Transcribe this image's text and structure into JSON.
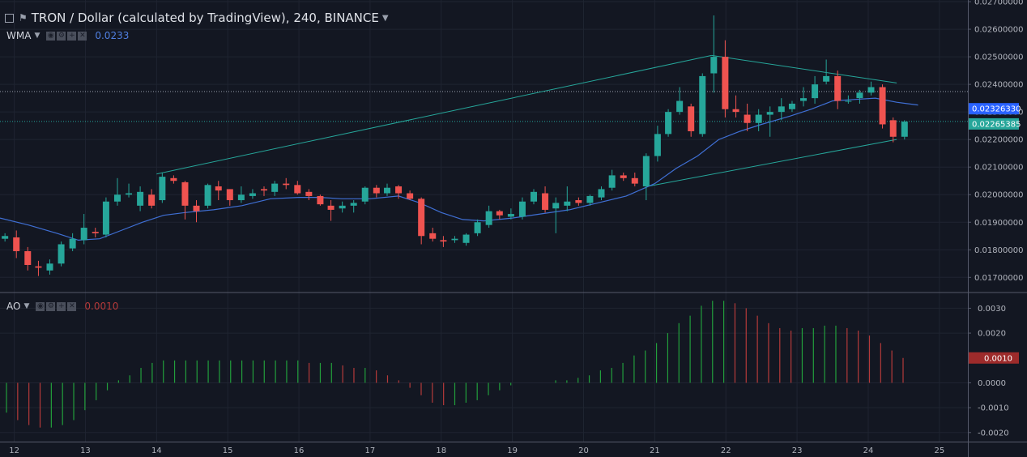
{
  "header": {
    "title": "TRON / Dollar (calculated by TradingView), 240, BINANCE"
  },
  "indicators": {
    "wma": {
      "label": "WMA",
      "value": "0.0233"
    },
    "ao": {
      "label": "AO",
      "value": "0.0010"
    }
  },
  "colors": {
    "background": "#131722",
    "up": "#26a69a",
    "down": "#ef5350",
    "wma_line": "#3f6fd4",
    "trendline": "#26a69a",
    "ao_up": "#229f3c",
    "ao_down": "#b53a3a",
    "label_wma": "#2962ff",
    "label_price": "#26a69a",
    "label_ao": "#9d2b2b"
  },
  "chart_data": [
    {
      "type": "candlestick",
      "title": "TRON / Dollar (calculated by TradingView), 240, BINANCE",
      "x_ticks": [
        "12",
        "13",
        "14",
        "15",
        "16",
        "17",
        "18",
        "19",
        "20",
        "21",
        "22",
        "23",
        "24",
        "25"
      ],
      "y_ticks": [
        "0.02700000",
        "0.02600000",
        "0.02500000",
        "0.02400000",
        "0.02300000",
        "0.02200000",
        "0.02100000",
        "0.02000000",
        "0.01900000",
        "0.01800000",
        "0.01700000"
      ],
      "ylim": [
        0.01648,
        0.02706
      ],
      "xlim": [
        11.8,
        25.4
      ],
      "last_price_label": "0.02265385",
      "wma_label": "0.02326330",
      "dotted_level": 0.02374,
      "candles": [
        [
          11.87,
          0.0184,
          0.0185,
          0.0183,
          0.0186
        ],
        [
          12.03,
          0.01845,
          0.01795,
          0.0177,
          0.0187
        ],
        [
          12.19,
          0.01795,
          0.01745,
          0.01725,
          0.0181
        ],
        [
          12.34,
          0.0174,
          0.01735,
          0.01705,
          0.0176
        ],
        [
          12.5,
          0.01725,
          0.0175,
          0.0171,
          0.01765
        ],
        [
          12.66,
          0.0175,
          0.0182,
          0.0174,
          0.0183
        ],
        [
          12.82,
          0.01805,
          0.0184,
          0.01795,
          0.0186
        ],
        [
          12.98,
          0.01835,
          0.0188,
          0.0182,
          0.0193
        ],
        [
          13.14,
          0.01865,
          0.0186,
          0.01845,
          0.0188
        ],
        [
          13.29,
          0.01855,
          0.01975,
          0.01845,
          0.0199
        ],
        [
          13.45,
          0.01975,
          0.02,
          0.0196,
          0.0206
        ],
        [
          13.61,
          0.02,
          0.02005,
          0.0199,
          0.0204
        ],
        [
          13.77,
          0.0196,
          0.0201,
          0.0194,
          0.0203
        ],
        [
          13.93,
          0.02,
          0.0196,
          0.0195,
          0.0202
        ],
        [
          14.08,
          0.0198,
          0.02065,
          0.0197,
          0.0208
        ],
        [
          14.24,
          0.0206,
          0.0205,
          0.0204,
          0.0207
        ],
        [
          14.4,
          0.02045,
          0.0196,
          0.0191,
          0.0205
        ],
        [
          14.56,
          0.0196,
          0.0194,
          0.019,
          0.0198
        ],
        [
          14.72,
          0.0196,
          0.02035,
          0.0195,
          0.0204
        ],
        [
          14.87,
          0.0203,
          0.02015,
          0.0198,
          0.0205
        ],
        [
          15.03,
          0.0202,
          0.0198,
          0.0196,
          0.0202
        ],
        [
          15.19,
          0.0198,
          0.02,
          0.0197,
          0.0203
        ],
        [
          15.35,
          0.01995,
          0.02005,
          0.01985,
          0.0202
        ],
        [
          15.51,
          0.0202,
          0.02015,
          0.01995,
          0.0203
        ],
        [
          15.66,
          0.0201,
          0.0204,
          0.01995,
          0.0205
        ],
        [
          15.82,
          0.0204,
          0.02035,
          0.0202,
          0.0206
        ],
        [
          15.98,
          0.02035,
          0.02005,
          0.02,
          0.0205
        ],
        [
          16.14,
          0.0201,
          0.01995,
          0.0198,
          0.0202
        ],
        [
          16.3,
          0.01995,
          0.01965,
          0.0196,
          0.02
        ],
        [
          16.45,
          0.0196,
          0.01945,
          0.01905,
          0.0198
        ],
        [
          16.61,
          0.0195,
          0.0196,
          0.01935,
          0.01975
        ],
        [
          16.77,
          0.0196,
          0.0197,
          0.01935,
          0.0198
        ],
        [
          16.93,
          0.01975,
          0.02025,
          0.01965,
          0.0203
        ],
        [
          17.09,
          0.02025,
          0.02005,
          0.0199,
          0.02035
        ],
        [
          17.24,
          0.02005,
          0.02025,
          0.01995,
          0.0204
        ],
        [
          17.4,
          0.0203,
          0.02005,
          0.01985,
          0.02035
        ],
        [
          17.56,
          0.02005,
          0.01985,
          0.0198,
          0.02015
        ],
        [
          17.72,
          0.01985,
          0.0185,
          0.0182,
          0.0199
        ],
        [
          17.88,
          0.0186,
          0.0184,
          0.0183,
          0.0188
        ],
        [
          18.03,
          0.01835,
          0.0183,
          0.0181,
          0.0185
        ],
        [
          18.19,
          0.01835,
          0.0184,
          0.01825,
          0.0185
        ],
        [
          18.35,
          0.01825,
          0.01855,
          0.01815,
          0.0186
        ],
        [
          18.51,
          0.0186,
          0.019,
          0.0185,
          0.0191
        ],
        [
          18.67,
          0.0189,
          0.0194,
          0.0188,
          0.0196
        ],
        [
          18.82,
          0.0194,
          0.01925,
          0.0191,
          0.01945
        ],
        [
          18.98,
          0.0192,
          0.0193,
          0.0191,
          0.0195
        ],
        [
          19.14,
          0.0192,
          0.01975,
          0.0191,
          0.0199
        ],
        [
          19.3,
          0.01975,
          0.0201,
          0.01965,
          0.0202
        ],
        [
          19.46,
          0.02005,
          0.01945,
          0.01935,
          0.0203
        ],
        [
          19.61,
          0.0195,
          0.0197,
          0.0186,
          0.0199
        ],
        [
          19.77,
          0.0196,
          0.01975,
          0.0194,
          0.0203
        ],
        [
          19.93,
          0.0198,
          0.0197,
          0.0196,
          0.0199
        ],
        [
          20.09,
          0.0197,
          0.01995,
          0.0196,
          0.02
        ],
        [
          20.25,
          0.0199,
          0.0202,
          0.0198,
          0.0203
        ],
        [
          20.4,
          0.02025,
          0.0207,
          0.02015,
          0.0209
        ],
        [
          20.56,
          0.0207,
          0.0206,
          0.0205,
          0.0208
        ],
        [
          20.72,
          0.0206,
          0.0204,
          0.0203,
          0.0208
        ],
        [
          20.88,
          0.0203,
          0.0214,
          0.0198,
          0.0215
        ],
        [
          21.04,
          0.0214,
          0.0222,
          0.0212,
          0.0225
        ],
        [
          21.19,
          0.0222,
          0.023,
          0.0221,
          0.0231
        ],
        [
          21.35,
          0.023,
          0.0234,
          0.0229,
          0.0239
        ],
        [
          21.51,
          0.0232,
          0.0223,
          0.0221,
          0.0233
        ],
        [
          21.67,
          0.0222,
          0.0243,
          0.0221,
          0.0244
        ],
        [
          21.83,
          0.0244,
          0.025,
          0.0237,
          0.0265
        ],
        [
          21.99,
          0.025,
          0.0231,
          0.0228,
          0.0256
        ],
        [
          22.14,
          0.0231,
          0.023,
          0.0228,
          0.0236
        ],
        [
          22.3,
          0.0229,
          0.0226,
          0.0223,
          0.0233
        ],
        [
          22.46,
          0.0226,
          0.0229,
          0.0223,
          0.0231
        ],
        [
          22.62,
          0.0229,
          0.023,
          0.0221,
          0.0232
        ],
        [
          22.78,
          0.023,
          0.0232,
          0.0227,
          0.0235
        ],
        [
          22.93,
          0.0231,
          0.0233,
          0.023,
          0.0234
        ],
        [
          23.09,
          0.0234,
          0.0235,
          0.0232,
          0.0239
        ],
        [
          23.25,
          0.0235,
          0.024,
          0.0233,
          0.0243
        ],
        [
          23.41,
          0.0241,
          0.0243,
          0.024,
          0.0249
        ],
        [
          23.57,
          0.0243,
          0.0234,
          0.0231,
          0.0245
        ],
        [
          23.72,
          0.0234,
          0.0234,
          0.0233,
          0.0236
        ],
        [
          23.88,
          0.0235,
          0.0237,
          0.0233,
          0.0238
        ],
        [
          24.04,
          0.0237,
          0.0239,
          0.0236,
          0.0241
        ],
        [
          24.2,
          0.0239,
          0.02255,
          0.0224,
          0.024
        ],
        [
          24.35,
          0.0227,
          0.0221,
          0.0219,
          0.0228
        ],
        [
          24.51,
          0.0221,
          0.02265,
          0.022,
          0.0227
        ]
      ],
      "wma": [
        [
          11.8,
          0.01915
        ],
        [
          12.2,
          0.0189
        ],
        [
          12.6,
          0.0186
        ],
        [
          12.9,
          0.01835
        ],
        [
          13.2,
          0.0184
        ],
        [
          13.5,
          0.0187
        ],
        [
          13.8,
          0.019
        ],
        [
          14.1,
          0.01925
        ],
        [
          14.4,
          0.01935
        ],
        [
          14.8,
          0.01945
        ],
        [
          15.2,
          0.0196
        ],
        [
          15.6,
          0.01985
        ],
        [
          16.0,
          0.0199
        ],
        [
          16.3,
          0.0199
        ],
        [
          16.6,
          0.01985
        ],
        [
          17.0,
          0.01985
        ],
        [
          17.4,
          0.01995
        ],
        [
          17.7,
          0.0197
        ],
        [
          18.0,
          0.01935
        ],
        [
          18.3,
          0.0191
        ],
        [
          18.6,
          0.01905
        ],
        [
          19.0,
          0.01915
        ],
        [
          19.4,
          0.0193
        ],
        [
          19.8,
          0.01945
        ],
        [
          20.2,
          0.0197
        ],
        [
          20.6,
          0.01995
        ],
        [
          21.0,
          0.0204
        ],
        [
          21.3,
          0.02095
        ],
        [
          21.6,
          0.0214
        ],
        [
          21.9,
          0.022
        ],
        [
          22.2,
          0.0223
        ],
        [
          22.5,
          0.02255
        ],
        [
          22.9,
          0.02285
        ],
        [
          23.2,
          0.0231
        ],
        [
          23.5,
          0.0234
        ],
        [
          23.8,
          0.02345
        ],
        [
          24.1,
          0.0235
        ],
        [
          24.4,
          0.02335
        ],
        [
          24.7,
          0.02325
        ]
      ],
      "trendlines": [
        [
          [
            14.0,
            0.02075
          ],
          [
            21.8,
            0.02505
          ]
        ],
        [
          [
            21.8,
            0.02505
          ],
          [
            24.4,
            0.02405
          ]
        ],
        [
          [
            20.9,
            0.0203
          ],
          [
            24.4,
            0.022
          ]
        ]
      ]
    },
    {
      "type": "histogram",
      "title": "AO",
      "y_ticks": [
        "0.0030",
        "0.0020",
        "0.0000",
        "-0.0010",
        "-0.0020"
      ],
      "ylim": [
        -0.0023,
        0.0036
      ],
      "value_label": "0.0010",
      "bars": [
        -0.0012,
        -0.0015,
        -0.0017,
        -0.0018,
        -0.0018,
        -0.0017,
        -0.0015,
        -0.0011,
        -0.0007,
        -0.0003,
        0.0001,
        0.0003,
        0.0006,
        0.0008,
        0.0009,
        0.0009,
        0.0009,
        0.0009,
        0.0009,
        0.0009,
        0.0009,
        0.0009,
        0.0009,
        0.0009,
        0.0009,
        0.0009,
        0.0009,
        0.0008,
        0.0008,
        0.0008,
        0.0007,
        0.0006,
        0.0006,
        0.0005,
        0.0003,
        0.0001,
        -0.0002,
        -0.0005,
        -0.0008,
        -0.0009,
        -0.0009,
        -0.0008,
        -0.0007,
        -0.0005,
        -0.0003,
        -0.0001,
        0.0,
        0.0,
        0.0,
        0.0001,
        0.0001,
        0.0002,
        0.0003,
        0.0005,
        0.0006,
        0.0008,
        0.0011,
        0.0013,
        0.0016,
        0.002,
        0.0024,
        0.0027,
        0.0031,
        0.0033,
        0.0033,
        0.0032,
        0.003,
        0.0027,
        0.0024,
        0.0022,
        0.0021,
        0.0022,
        0.0022,
        0.0023,
        0.0023,
        0.0022,
        0.0021,
        0.0019,
        0.0016,
        0.0013,
        0.001
      ]
    }
  ]
}
